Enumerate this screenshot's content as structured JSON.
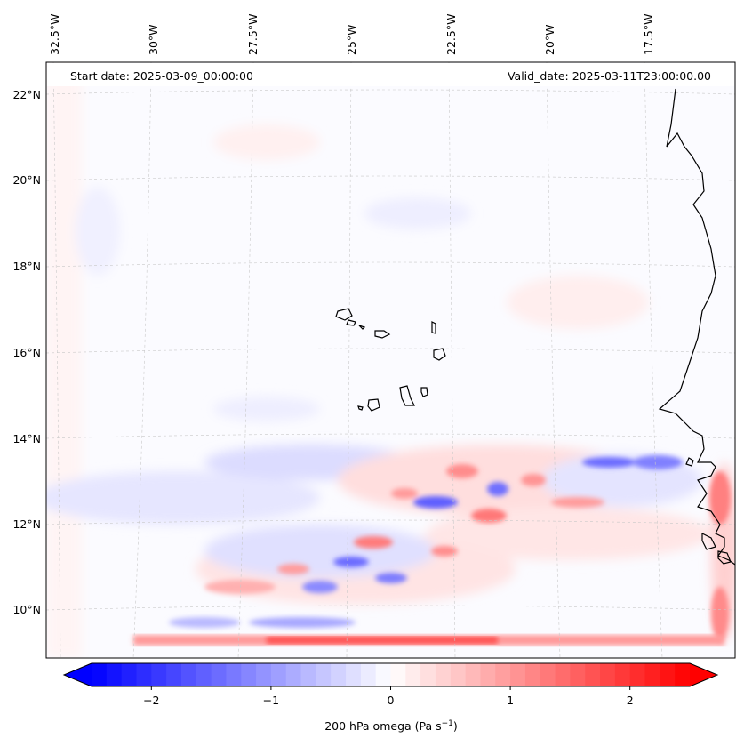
{
  "map": {
    "start_date": "Start date: 2025-03-09_00:00:00",
    "valid_date": "Valid_date: 2025-03-11T23:00:00.00",
    "lon_labels": [
      "32.5°W",
      "30°W",
      "27.5°W",
      "25°W",
      "22.5°W",
      "20°W",
      "17.5°W"
    ],
    "lat_labels": [
      "22°N",
      "20°N",
      "18°N",
      "16°N",
      "14°N",
      "12°N",
      "10°N"
    ]
  },
  "colorbar": {
    "label_prefix": "200 hPa omega (Pa s",
    "label_sup": "−1",
    "label_suffix": ")",
    "ticks": [
      "−2",
      "−1",
      "0",
      "1",
      "2"
    ],
    "tick_values": [
      -2,
      -1,
      0,
      1,
      2
    ],
    "range": [
      -2.5,
      2.5
    ],
    "extend": "both",
    "cmap": "bwr",
    "colors": {
      "negative": "#0000ff",
      "zero": "#ffffff",
      "positive": "#ff0000"
    }
  }
}
